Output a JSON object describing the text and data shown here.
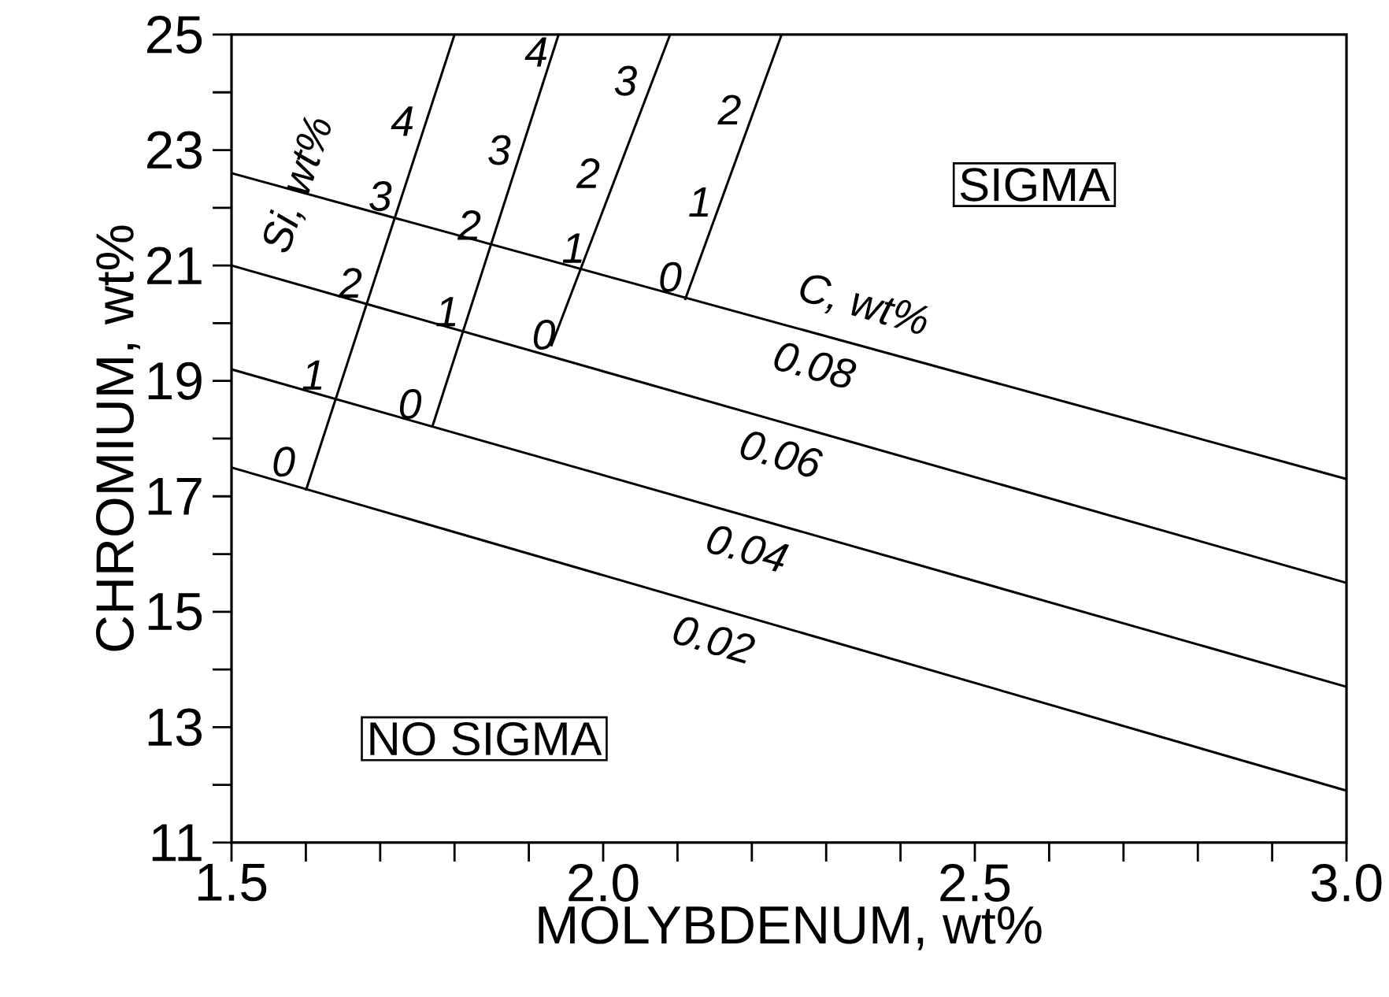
{
  "chart_data": {
    "type": "line",
    "xlabel": "MOLYBDENUM, wt%",
    "ylabel": "CHROMIUM, wt%",
    "xlim": [
      1.5,
      3.0
    ],
    "ylim": [
      11,
      25
    ],
    "xticks": [
      {
        "value": 1.5,
        "label": "1.5"
      },
      {
        "value": 1.6,
        "label": null
      },
      {
        "value": 1.7,
        "label": null
      },
      {
        "value": 1.8,
        "label": null
      },
      {
        "value": 1.9,
        "label": null
      },
      {
        "value": 2.0,
        "label": "2.0"
      },
      {
        "value": 2.1,
        "label": null
      },
      {
        "value": 2.2,
        "label": null
      },
      {
        "value": 2.3,
        "label": null
      },
      {
        "value": 2.4,
        "label": null
      },
      {
        "value": 2.5,
        "label": "2.5"
      },
      {
        "value": 2.6,
        "label": null
      },
      {
        "value": 2.7,
        "label": null
      },
      {
        "value": 2.8,
        "label": null
      },
      {
        "value": 2.9,
        "label": null
      },
      {
        "value": 3.0,
        "label": "3.0"
      }
    ],
    "yticks": [
      11,
      {
        "value": 12,
        "label": null
      },
      13,
      {
        "value": 14,
        "label": null
      },
      15,
      {
        "value": 16,
        "label": null
      },
      17,
      {
        "value": 18,
        "label": null
      },
      19,
      {
        "value": 20,
        "label": null
      },
      21,
      {
        "value": 22,
        "label": null
      },
      23,
      {
        "value": 24,
        "label": null
      },
      25
    ],
    "series": [
      {
        "name": "0.08",
        "color": "#000000",
        "x": [
          1.5,
          3.0
        ],
        "values": [
          22.6,
          17.3
        ]
      },
      {
        "name": "0.06",
        "color": "#000000",
        "x": [
          1.5,
          3.0
        ],
        "values": [
          21.0,
          15.5
        ]
      },
      {
        "name": "0.04",
        "color": "#000000",
        "x": [
          1.5,
          3.0
        ],
        "values": [
          19.2,
          13.7
        ]
      },
      {
        "name": "0.02",
        "color": "#000000",
        "x": [
          1.5,
          3.0
        ],
        "values": [
          17.5,
          11.9
        ]
      },
      {
        "color": "#000000",
        "x": [
          1.6,
          1.8
        ],
        "values": [
          17.1,
          25
        ]
      },
      {
        "color": "#000000",
        "x": [
          1.77,
          1.94
        ],
        "values": [
          18.2,
          25
        ]
      },
      {
        "color": "#000000",
        "x": [
          1.93,
          2.09
        ],
        "values": [
          19.6,
          25
        ]
      },
      {
        "color": "#000000",
        "x": [
          2.11,
          2.24
        ],
        "values": [
          20.4,
          25
        ]
      }
    ],
    "annotations": [
      "SIGMA",
      "NO SIGMA",
      "C,  wt%",
      "Si, wt%",
      "0",
      "1",
      "2",
      "3",
      "4",
      "0",
      "1",
      "2",
      "3",
      "4",
      "0",
      "1",
      "2",
      "3",
      "0",
      "1",
      "2"
    ]
  }
}
